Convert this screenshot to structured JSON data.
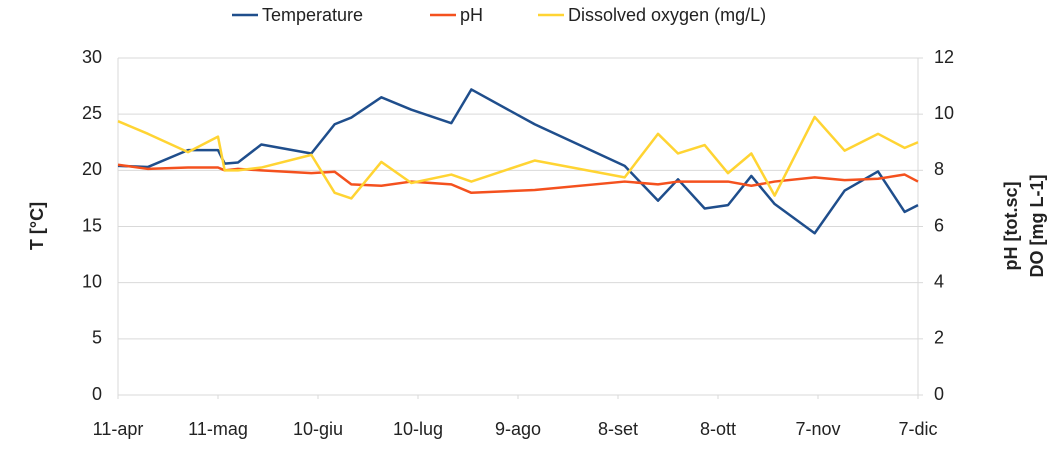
{
  "chart_data": {
    "type": "line",
    "x": [
      "04-11",
      "04-20",
      "05-02",
      "05-11",
      "05-13",
      "05-17",
      "05-24",
      "06-08",
      "06-15",
      "06-20",
      "06-29",
      "07-08",
      "07-20",
      "07-26",
      "08-14",
      "09-10",
      "09-20",
      "09-26",
      "10-04",
      "10-11",
      "10-18",
      "10-25",
      "11-06",
      "11-15",
      "11-25",
      "12-03",
      "12-07"
    ],
    "xlim": [
      "04-11",
      "12-07"
    ],
    "xticks": [
      {
        "value": "04-11",
        "label": "11-apr"
      },
      {
        "value": "05-11",
        "label": "11-mag"
      },
      {
        "value": "06-10",
        "label": "10-giu"
      },
      {
        "value": "07-10",
        "label": "10-lug"
      },
      {
        "value": "08-09",
        "label": "9-ago"
      },
      {
        "value": "09-08",
        "label": "8-set"
      },
      {
        "value": "10-08",
        "label": "8-ott"
      },
      {
        "value": "11-07",
        "label": "7-nov"
      },
      {
        "value": "12-07",
        "label": "7-dic"
      }
    ],
    "y_label": "T [°C]",
    "y2_label": [
      "pH [tot.sc]",
      "DO [mg L-1]"
    ],
    "ylim": [
      0,
      30
    ],
    "yticks": [
      0,
      5,
      10,
      15,
      20,
      25,
      30
    ],
    "y2lim": [
      0,
      12
    ],
    "y2ticks": [
      0,
      2,
      4,
      6,
      8,
      10,
      12
    ],
    "grid": true,
    "legend": "top",
    "series": [
      {
        "name": "Temperature",
        "color": "#1f4e8c",
        "values": [
          20.4,
          20.3,
          21.8,
          21.8,
          20.6,
          20.7,
          22.3,
          21.5,
          24.1,
          24.7,
          26.5,
          25.4,
          24.2,
          27.2,
          24.1,
          20.4,
          17.3,
          19.2,
          16.6,
          16.9,
          19.5,
          17.0,
          14.4,
          18.2,
          19.9,
          16.3,
          16.9
        ]
      },
      {
        "name": "pH",
        "color": "#f4511e",
        "axis": "y2",
        "values": [
          8.2,
          8.05,
          8.1,
          8.1,
          8.0,
          8.05,
          8.0,
          7.9,
          7.95,
          7.5,
          7.45,
          7.6,
          7.5,
          7.2,
          7.3,
          7.6,
          7.5,
          7.6,
          7.6,
          7.6,
          7.45,
          7.6,
          7.75,
          7.65,
          7.7,
          7.85,
          7.6
        ]
      },
      {
        "name": "Dissolved oxygen (mg/L)",
        "color": "#ffd433",
        "axis": "y2",
        "values": [
          9.75,
          9.3,
          8.65,
          9.2,
          8.0,
          8.0,
          8.1,
          8.55,
          7.2,
          7.0,
          8.3,
          7.55,
          7.85,
          7.6,
          8.35,
          7.75,
          9.3,
          8.6,
          8.9,
          7.9,
          8.6,
          7.1,
          9.9,
          8.7,
          9.3,
          8.8,
          9.0
        ]
      }
    ]
  }
}
